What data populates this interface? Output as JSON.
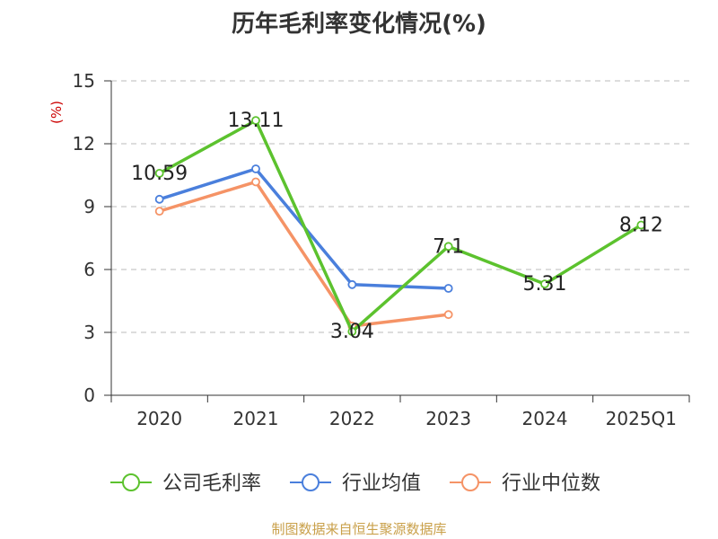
{
  "chart_data": {
    "type": "line",
    "title": "历年毛利率变化情况(%)",
    "xlabel": "",
    "ylabel": "(%)",
    "categories": [
      "2020",
      "2021",
      "2022",
      "2023",
      "2024",
      "2025Q1"
    ],
    "ylim": [
      0,
      15
    ],
    "yticks": [
      0,
      3,
      6,
      9,
      12,
      15
    ],
    "grid": "horizontal-dashed",
    "legend_position": "bottom",
    "series": [
      {
        "name": "公司毛利率",
        "color": "#5cc22e",
        "values": [
          10.59,
          13.11,
          3.04,
          7.1,
          5.31,
          8.12
        ],
        "labels": [
          "10.59",
          "13.11",
          "3.04",
          "7.1",
          "5.31",
          "8.12"
        ]
      },
      {
        "name": "行业均值",
        "color": "#4a7fdc",
        "values": [
          9.35,
          10.8,
          5.28,
          5.1,
          null,
          null
        ]
      },
      {
        "name": "行业中位数",
        "color": "#f59366",
        "values": [
          8.78,
          10.18,
          3.3,
          3.85,
          null,
          null
        ]
      }
    ]
  },
  "footer": {
    "source": "制图数据来自恒生聚源数据库"
  }
}
